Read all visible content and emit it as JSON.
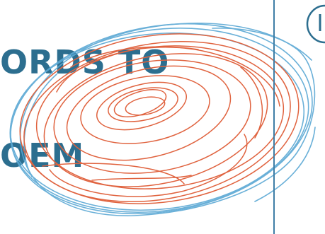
{
  "title": {
    "line1": "ORDS TO",
    "line2": "OEM"
  },
  "colors": {
    "title": "#2c6e8f",
    "spiral_red": "#e0633f",
    "spiral_blue": "#5aa8d4",
    "divider": "#3f7ea6"
  },
  "artwork": {
    "description_icon": "scribble-spiral-icon"
  }
}
